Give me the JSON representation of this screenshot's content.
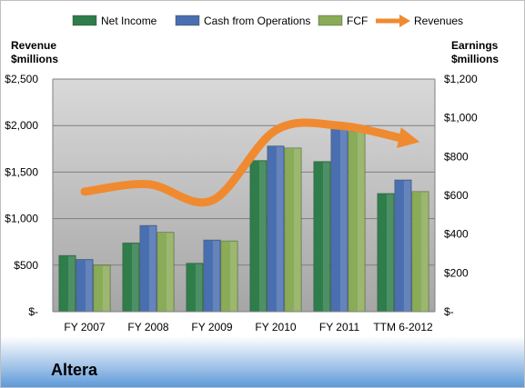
{
  "chart_data": {
    "type": "bar",
    "categories": [
      "FY 2007",
      "FY 2008",
      "FY 2009",
      "FY 2010",
      "FY 2011",
      "TTM 6-2012"
    ],
    "series": [
      {
        "name": "Net Income",
        "axis": "right",
        "color": "#2e7d4a",
        "values": [
          290,
          355,
          250,
          780,
          775,
          610
        ]
      },
      {
        "name": "Cash from Operations",
        "axis": "right",
        "color": "#4a6fb0",
        "values": [
          270,
          445,
          370,
          855,
          960,
          680
        ]
      },
      {
        "name": "FCF",
        "axis": "right",
        "color": "#8aab58",
        "values": [
          240,
          410,
          365,
          845,
          930,
          620
        ]
      },
      {
        "name": "Revenues",
        "axis": "left",
        "type": "line",
        "color": "#f08a30",
        "values": [
          1290,
          1370,
          1195,
          1950,
          2000,
          1860
        ]
      }
    ],
    "left_axis": {
      "label_line1": "Revenue",
      "label_line2": "$millions",
      "ylim": [
        0,
        2500
      ],
      "ticks": [
        0,
        500,
        1000,
        1500,
        2000,
        2500
      ],
      "tick_labels": [
        "$-",
        "$500",
        "$1,000",
        "$1,500",
        "$2,000",
        "$2,500"
      ]
    },
    "right_axis": {
      "label_line1": "Earnings",
      "label_line2": "$millions",
      "ylim": [
        0,
        1200
      ],
      "ticks": [
        0,
        200,
        400,
        600,
        800,
        1000,
        1200
      ],
      "tick_labels": [
        "$-",
        "$200",
        "$400",
        "$600",
        "$800",
        "$1,000",
        "$1,200"
      ]
    },
    "legend_position": "top",
    "grid": true,
    "company": "Altera"
  }
}
